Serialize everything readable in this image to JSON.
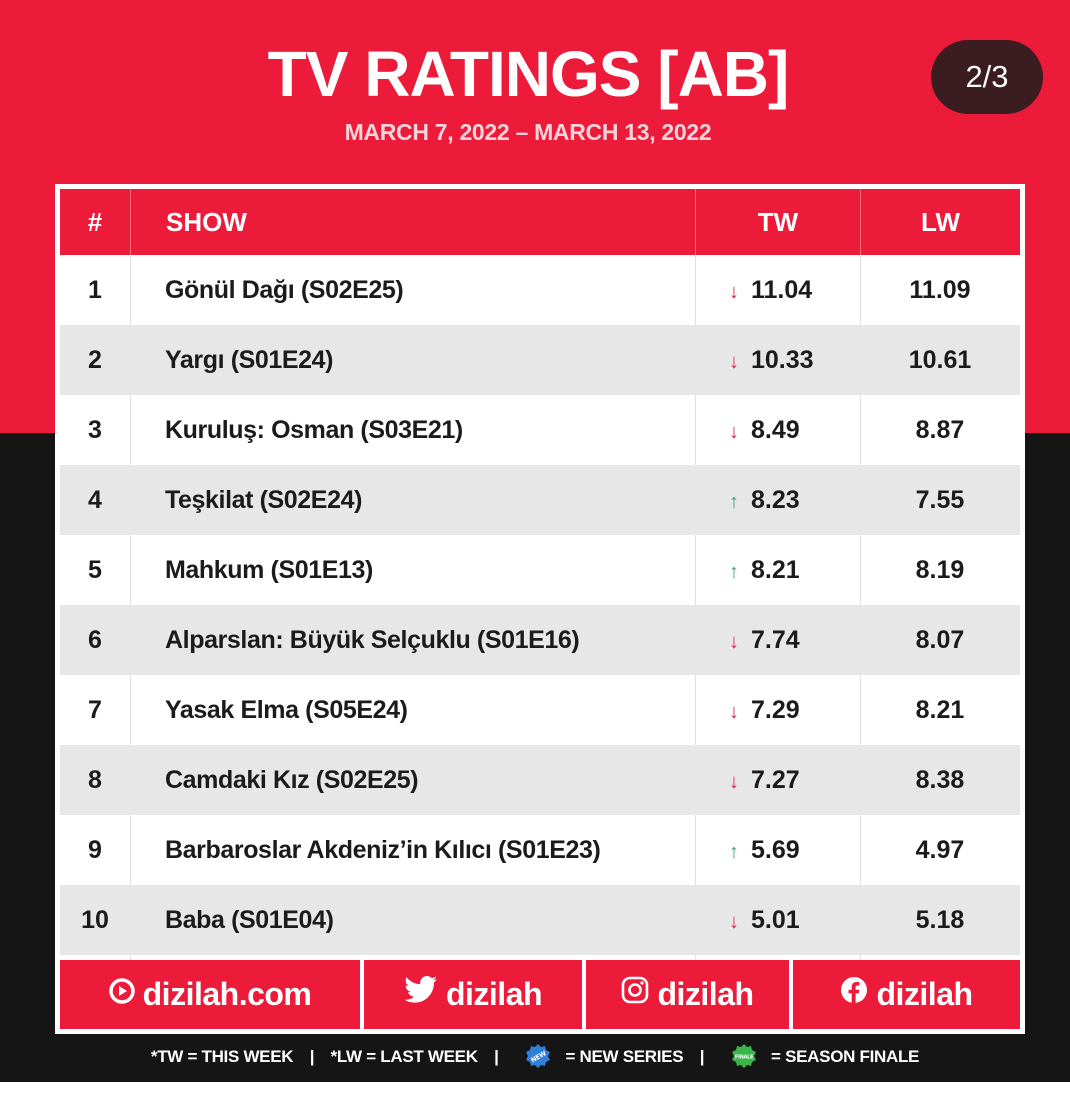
{
  "header": {
    "title": "TV RATINGS [AB]",
    "date_range": "MARCH 7, 2022 – MARCH 13, 2022",
    "page_indicator": "2/3"
  },
  "table": {
    "columns": {
      "rank": "#",
      "show": "SHOW",
      "this_week": "TW",
      "last_week": "LW"
    },
    "rows": [
      {
        "rank": "1",
        "show": "Gönül Dağı (S02E25)",
        "trend": "down",
        "tw": "11.04",
        "lw": "11.09"
      },
      {
        "rank": "2",
        "show": "Yargı (S01E24)",
        "trend": "down",
        "tw": "10.33",
        "lw": "10.61"
      },
      {
        "rank": "3",
        "show": "Kuruluş: Osman (S03E21)",
        "trend": "down",
        "tw": "8.49",
        "lw": "8.87"
      },
      {
        "rank": "4",
        "show": "Teşkilat (S02E24)",
        "trend": "up",
        "tw": "8.23",
        "lw": "7.55"
      },
      {
        "rank": "5",
        "show": "Mahkum (S01E13)",
        "trend": "up",
        "tw": "8.21",
        "lw": "8.19"
      },
      {
        "rank": "6",
        "show": "Alparslan: Büyük Selçuklu (S01E16)",
        "trend": "down",
        "tw": "7.74",
        "lw": "8.07"
      },
      {
        "rank": "7",
        "show": "Yasak Elma (S05E24)",
        "trend": "down",
        "tw": "7.29",
        "lw": "8.21"
      },
      {
        "rank": "8",
        "show": "Camdaki Kız (S02E25)",
        "trend": "down",
        "tw": "7.27",
        "lw": "8.38"
      },
      {
        "rank": "9",
        "show": "Barbaroslar Akdeniz’in Kılıcı (S01E23)",
        "trend": "up",
        "tw": "5.69",
        "lw": "4.97"
      },
      {
        "rank": "10",
        "show": "Baba (S01E04)",
        "trend": "down",
        "tw": "5.01",
        "lw": "5.18"
      }
    ]
  },
  "socials": [
    {
      "icon": "dizilah-logo-icon",
      "label": "dizilah.com"
    },
    {
      "icon": "twitter-icon",
      "label": "dizilah"
    },
    {
      "icon": "instagram-icon",
      "label": "dizilah"
    },
    {
      "icon": "facebook-icon",
      "label": "dizilah"
    }
  ],
  "legend": {
    "tw": "*TW = THIS WEEK",
    "lw": "*LW = LAST WEEK",
    "new_series": "= NEW SERIES",
    "season_finale": "= SEASON FINALE",
    "new_badge_text": "NEW",
    "finale_badge_text": "FINALE"
  },
  "colors": {
    "brand_red": "#ec1b3a",
    "dark_background": "#151516",
    "trend_down": "#d9214a",
    "trend_up": "#3aa27a",
    "new_badge": "#2f7fd6",
    "finale_badge": "#39b54a"
  }
}
